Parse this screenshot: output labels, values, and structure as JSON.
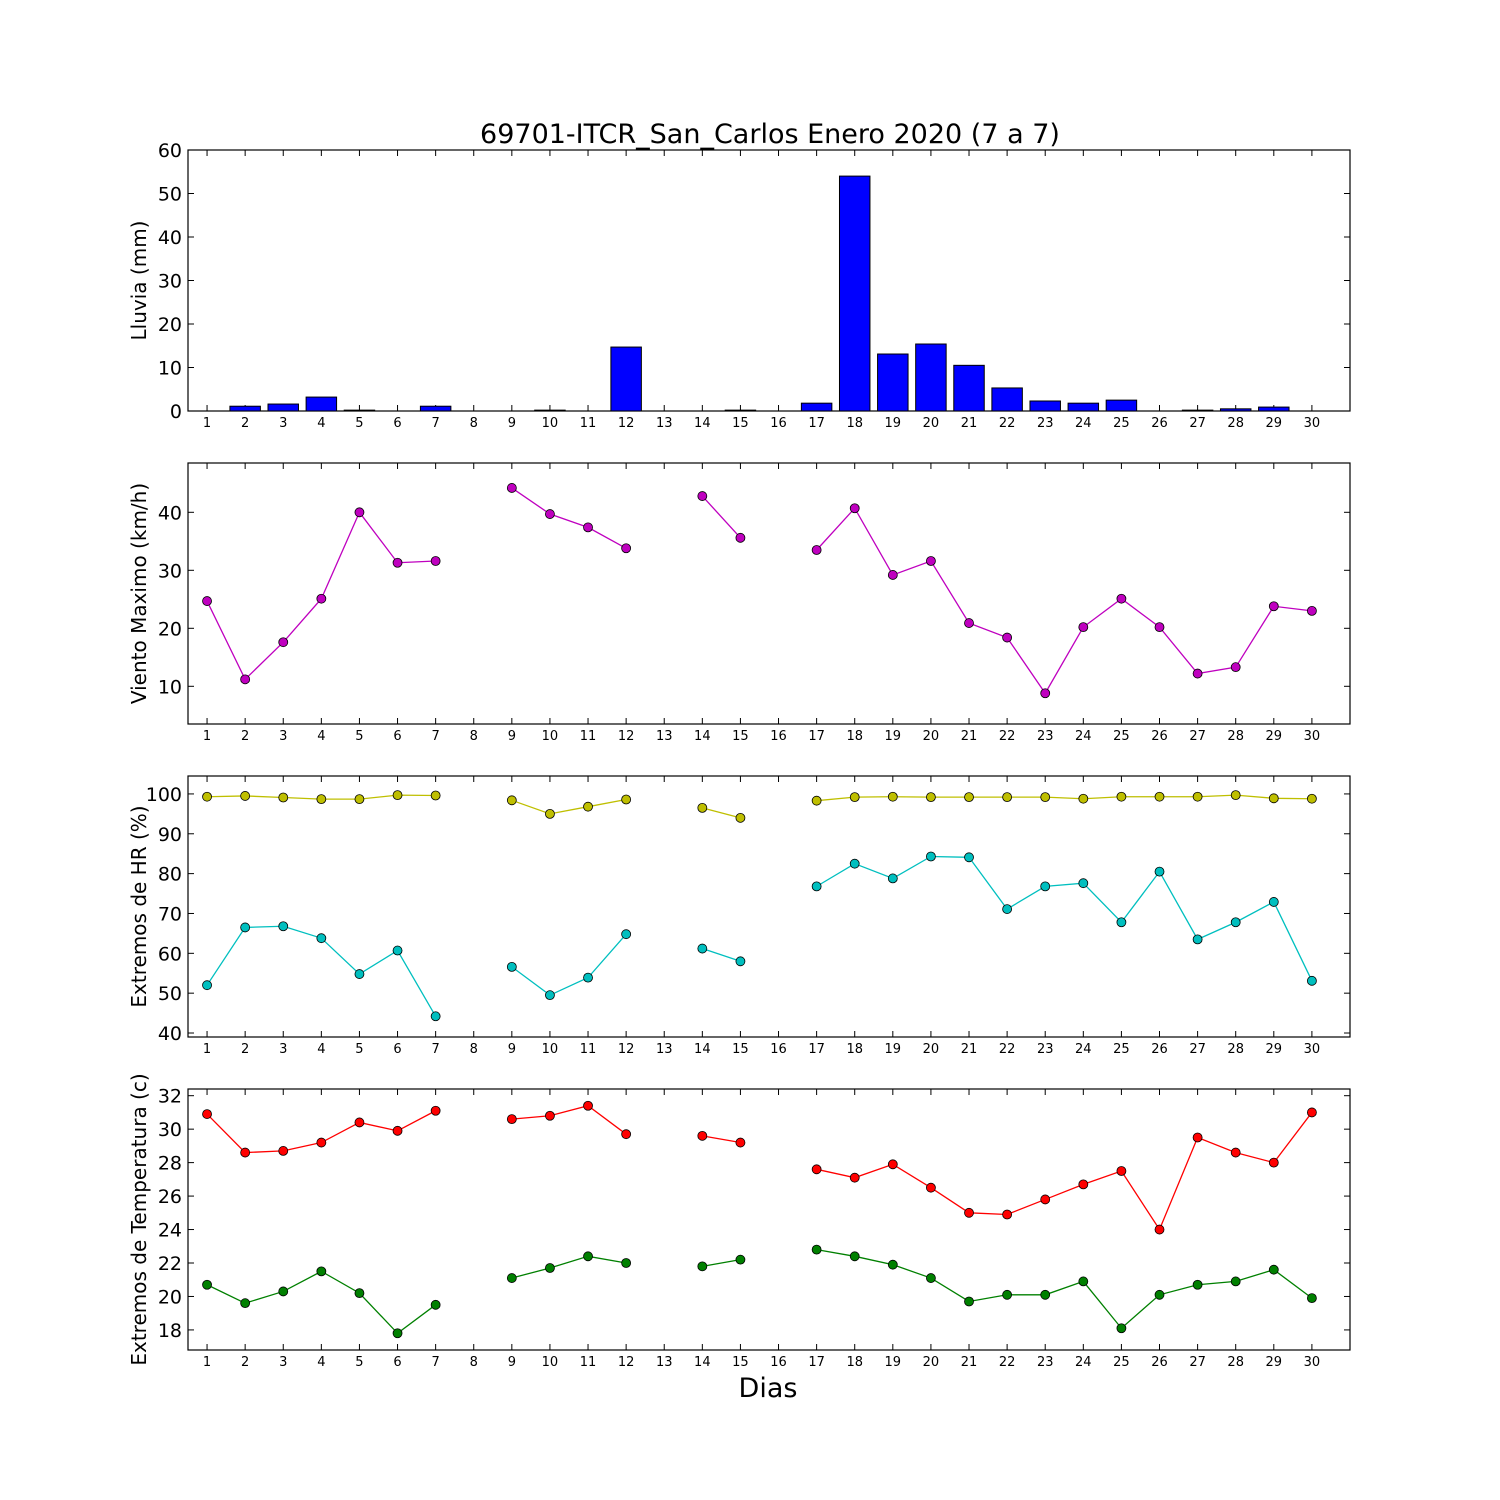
{
  "title": "69701-ITCR_San_Carlos Enero 2020  (7 a 7)",
  "xlabel": "Dias",
  "colors": {
    "rain_bars": "#0000ff",
    "wind": "#bf00bf",
    "hr_max": "#bfbf00",
    "hr_min": "#00bfbf",
    "temp_max": "#ff0000",
    "temp_min": "#008000"
  },
  "chart_data": [
    {
      "type": "bar",
      "ylabel": "Lluvia (mm)",
      "ylim": [
        0,
        60
      ],
      "yticks": [
        0,
        10,
        20,
        30,
        40,
        50,
        60
      ],
      "categories": [
        "1",
        "2",
        "3",
        "4",
        "5",
        "6",
        "7",
        "8",
        "9",
        "10",
        "11",
        "12",
        "13",
        "14",
        "15",
        "16",
        "17",
        "18",
        "19",
        "20",
        "21",
        "22",
        "23",
        "24",
        "25",
        "26",
        "27",
        "28",
        "29",
        "30"
      ],
      "values": [
        0,
        1.1,
        1.6,
        3.2,
        0.2,
        0,
        1.1,
        0,
        0,
        0.2,
        0,
        14.7,
        0,
        0,
        0.2,
        0,
        1.8,
        54.0,
        13.1,
        15.4,
        10.5,
        5.3,
        2.3,
        1.8,
        2.5,
        0,
        0.2,
        0.5,
        0.9,
        0
      ],
      "grid": false
    },
    {
      "type": "line",
      "ylabel": "Viento Maximo (km/h)",
      "ylim": [
        3.5,
        48.5
      ],
      "yticks": [
        10,
        20,
        30,
        40
      ],
      "categories": [
        "1",
        "2",
        "3",
        "4",
        "5",
        "6",
        "7",
        "8",
        "9",
        "10",
        "11",
        "12",
        "13",
        "14",
        "15",
        "16",
        "17",
        "18",
        "19",
        "20",
        "21",
        "22",
        "23",
        "24",
        "25",
        "26",
        "27",
        "28",
        "29",
        "30"
      ],
      "series": [
        {
          "values": [
            24.7,
            11.2,
            17.6,
            25.1,
            40.0,
            31.3,
            31.6,
            null,
            44.2,
            39.7,
            37.4,
            33.8,
            null,
            42.8,
            35.6,
            null,
            33.5,
            40.7,
            29.2,
            31.6,
            20.9,
            18.4,
            8.8,
            20.2,
            25.1,
            20.2,
            12.2,
            13.3,
            23.8,
            23.0
          ]
        }
      ],
      "grid": false
    },
    {
      "type": "line",
      "ylabel": "Extremos de HR (%)",
      "ylim": [
        39,
        104.5
      ],
      "yticks": [
        40,
        50,
        60,
        70,
        80,
        90,
        100
      ],
      "categories": [
        "1",
        "2",
        "3",
        "4",
        "5",
        "6",
        "7",
        "8",
        "9",
        "10",
        "11",
        "12",
        "13",
        "14",
        "15",
        "16",
        "17",
        "18",
        "19",
        "20",
        "21",
        "22",
        "23",
        "24",
        "25",
        "26",
        "27",
        "28",
        "29",
        "30"
      ],
      "series": [
        {
          "values": [
            99.3,
            99.5,
            99.1,
            98.7,
            98.7,
            99.7,
            99.6,
            null,
            98.4,
            95.0,
            96.8,
            98.6,
            null,
            96.5,
            94.0,
            null,
            98.3,
            99.2,
            99.3,
            99.2,
            99.2,
            99.2,
            99.2,
            98.8,
            99.3,
            99.3,
            99.3,
            99.7,
            98.9,
            98.8
          ]
        },
        {
          "values": [
            52.0,
            66.5,
            66.8,
            63.8,
            54.8,
            60.7,
            44.2,
            null,
            56.6,
            49.5,
            53.9,
            64.8,
            null,
            61.2,
            58.0,
            null,
            76.8,
            82.5,
            78.8,
            84.3,
            84.1,
            71.1,
            76.8,
            77.6,
            67.8,
            80.5,
            63.5,
            67.8,
            72.9,
            53.1
          ]
        }
      ],
      "grid": false
    },
    {
      "type": "line",
      "ylabel": "Extremos de Temperatura (c)",
      "ylim": [
        16.8,
        32.4
      ],
      "yticks": [
        18,
        20,
        22,
        24,
        26,
        28,
        30,
        32
      ],
      "categories": [
        "1",
        "2",
        "3",
        "4",
        "5",
        "6",
        "7",
        "8",
        "9",
        "10",
        "11",
        "12",
        "13",
        "14",
        "15",
        "16",
        "17",
        "18",
        "19",
        "20",
        "21",
        "22",
        "23",
        "24",
        "25",
        "26",
        "27",
        "28",
        "29",
        "30"
      ],
      "series": [
        {
          "values": [
            30.9,
            28.6,
            28.7,
            29.2,
            30.4,
            29.9,
            31.1,
            null,
            30.6,
            30.8,
            31.4,
            29.7,
            null,
            29.6,
            29.2,
            null,
            27.6,
            27.1,
            27.9,
            26.5,
            25.0,
            24.9,
            25.8,
            26.7,
            27.5,
            24.0,
            29.5,
            28.6,
            28.0,
            31.0
          ]
        },
        {
          "values": [
            20.7,
            19.6,
            20.3,
            21.5,
            20.2,
            17.8,
            19.5,
            null,
            21.1,
            21.7,
            22.4,
            22.0,
            null,
            21.8,
            22.2,
            null,
            22.8,
            22.4,
            21.9,
            21.1,
            19.7,
            20.1,
            20.1,
            20.9,
            18.1,
            20.1,
            20.7,
            20.9,
            21.6,
            19.9
          ]
        }
      ],
      "grid": false
    }
  ]
}
